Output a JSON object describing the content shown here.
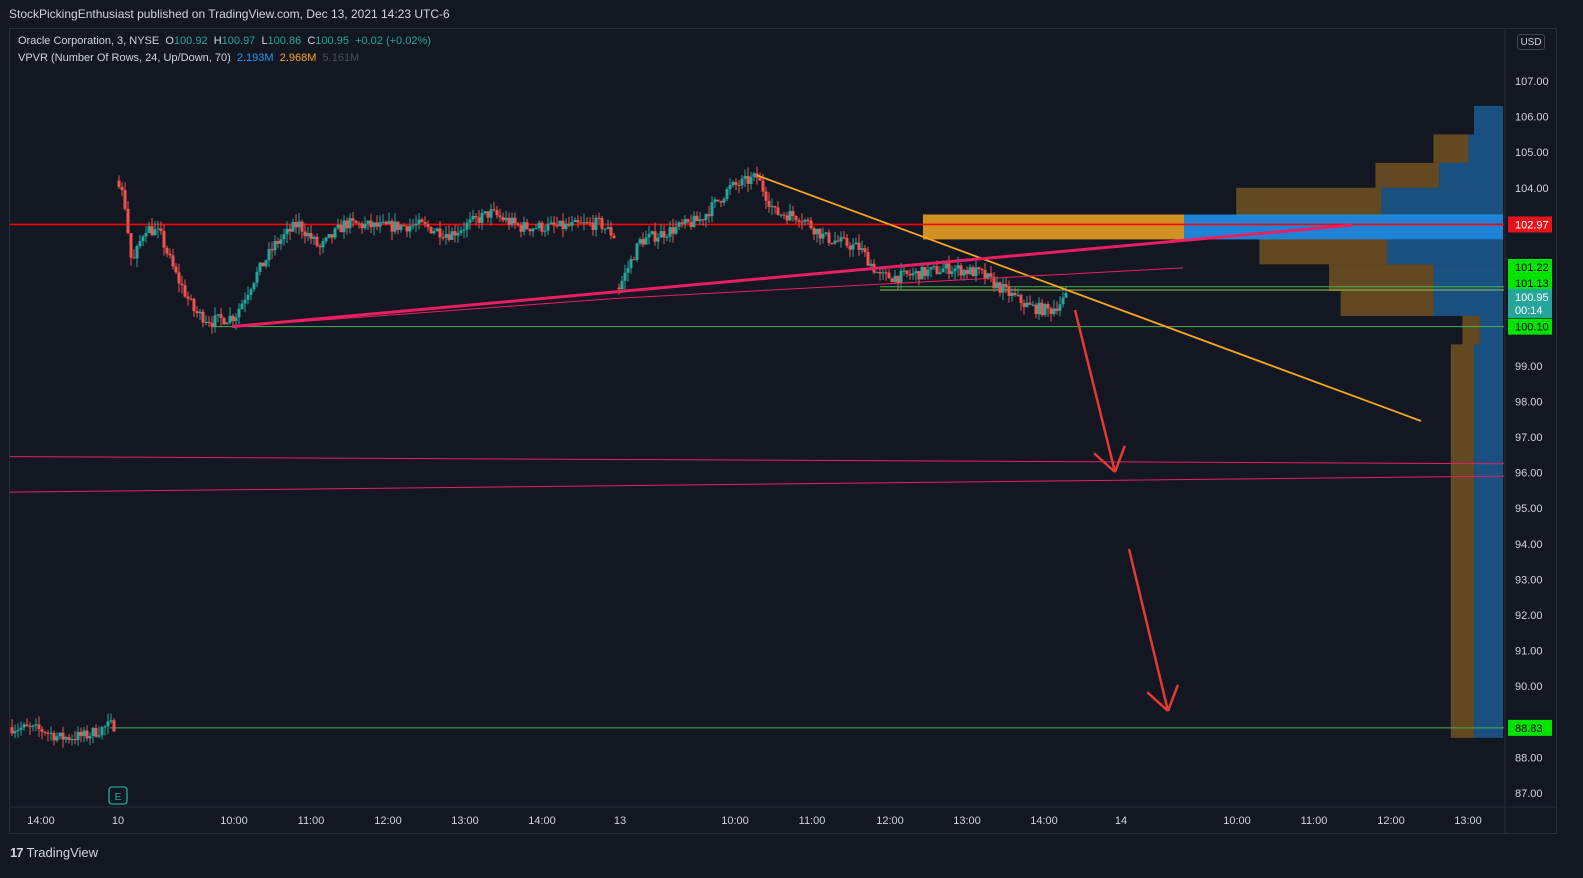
{
  "header": {
    "publish_line": "StockPickingEnthusiast published on TradingView.com, Dec 13, 2021 14:23 UTC-6"
  },
  "legend": {
    "symbol": "Oracle Corporation, 3, NYSE",
    "o_label": "O",
    "o_value": "100.92",
    "h_label": "H",
    "h_value": "100.97",
    "l_label": "L",
    "l_value": "100.86",
    "c_label": "C",
    "c_value": "100.95",
    "change": "+0.02 (+0.02%)",
    "indicator": "VPVR (Number Of Rows, 24, Up/Down, 70)",
    "ind_up": "2.193M",
    "ind_down": "2.968M",
    "ind_total": "5.161M"
  },
  "currency_badge": "USD",
  "earnings_marker": "E",
  "footer": {
    "brand": "TradingView",
    "brand_glyph": "17"
  },
  "colors": {
    "background": "#131722",
    "up_candle": "#26a69a",
    "down_candle": "#ef5350",
    "resistance_line": "#ff0000",
    "support_line": "#4caf50",
    "trendline_orange": "#f5a623",
    "trendline_pink": "#e91e63",
    "arrow": "#e53935",
    "vp_up": "#2196f3",
    "vp_down": "#f5a623"
  },
  "chart_data": {
    "type": "candlestick",
    "symbol": "ORCL",
    "interval": "3",
    "y_axis": {
      "ticks": [
        "107.00",
        "106.00",
        "105.00",
        "104.00",
        "102.97",
        "101.22",
        "101.13",
        "100.95",
        "100.10",
        "99.00",
        "98.00",
        "97.00",
        "96.00",
        "95.00",
        "94.00",
        "93.00",
        "92.00",
        "91.00",
        "90.00",
        "88.83",
        "88.00",
        "87.00"
      ],
      "range": [
        86.4,
        108.2
      ]
    },
    "x_axis": {
      "ticks": [
        "14:00",
        "10",
        "10:00",
        "11:00",
        "12:00",
        "13:00",
        "14:00",
        "13",
        "10:00",
        "11:00",
        "12:00",
        "13:00",
        "14:00",
        "14",
        "10:00",
        "11:00",
        "12:00",
        "13:00"
      ]
    },
    "price_labels": [
      {
        "value": "102.97",
        "kind": "resistance"
      },
      {
        "value": "101.22",
        "kind": "support"
      },
      {
        "value": "101.13",
        "kind": "support"
      },
      {
        "value": "100.95",
        "kind": "last"
      },
      {
        "value": "00:14",
        "kind": "countdown"
      },
      {
        "value": "100.10",
        "kind": "support"
      },
      {
        "value": "88.83",
        "kind": "support"
      }
    ],
    "horizontal_levels": [
      {
        "price": 102.97,
        "color": "#ff0000"
      },
      {
        "price": 101.22,
        "color": "#4caf50"
      },
      {
        "price": 100.1,
        "color": "#4caf50"
      },
      {
        "price": 88.83,
        "color": "#4caf50"
      }
    ],
    "trendlines": [
      {
        "name": "descending",
        "from": {
          "x": "Dec 13 10:18",
          "y": 104.35
        },
        "to": {
          "x": "Dec 14 12:40",
          "y": 97.45
        },
        "color": "#f5a623"
      },
      {
        "name": "rising",
        "from": {
          "x": "Dec 10 10:00",
          "y": 100.1
        },
        "to": {
          "x": "Dec 14 11:45",
          "y": 102.95
        },
        "color": "#e91e63"
      },
      {
        "name": "rising-thin",
        "from": {
          "x": "Dec 13 10:00",
          "y": 100.9
        },
        "to": {
          "x": "Dec 14 09:40",
          "y": 101.75
        },
        "color": "#e91e63"
      },
      {
        "name": "channel-upper",
        "from": {
          "x": "Dec 9 13:30",
          "y": 96.5
        },
        "to": {
          "x": "Dec 14 13:20",
          "y": 96.25
        },
        "color": "#e91e63"
      },
      {
        "name": "channel-lower",
        "from": {
          "x": "Dec 9 13:30",
          "y": 95.45
        },
        "to": {
          "x": "Dec 14 13:20",
          "y": 95.9
        },
        "color": "#e91e63"
      }
    ],
    "arrows": [
      {
        "from": {
          "x": "Dec 13 14:32",
          "y": 100.55
        },
        "to": {
          "x": "Dec 13 14:55",
          "y": 95.9
        }
      },
      {
        "from": {
          "x": "Dec 13 15:00",
          "y": 93.85
        },
        "to": {
          "x": "Dec 14 09:05",
          "y": 88.55
        }
      }
    ],
    "volume_profile": {
      "rows": [
        {
          "price_low": 105.5,
          "price_high": 106.3,
          "up": 0.05,
          "down": 0.0
        },
        {
          "price_low": 104.7,
          "price_high": 105.5,
          "up": 0.06,
          "down": 0.06
        },
        {
          "price_low": 104.0,
          "price_high": 104.7,
          "up": 0.11,
          "down": 0.11
        },
        {
          "price_low": 103.2,
          "price_high": 104.0,
          "up": 0.21,
          "down": 0.25
        },
        {
          "price_low": 102.55,
          "price_high": 103.25,
          "up": 0.55,
          "down": 0.45
        },
        {
          "price_low": 101.85,
          "price_high": 102.55,
          "up": 0.2,
          "down": 0.22
        },
        {
          "price_low": 101.1,
          "price_high": 101.85,
          "up": 0.12,
          "down": 0.18
        },
        {
          "price_low": 100.4,
          "price_high": 101.1,
          "up": 0.12,
          "down": 0.16
        },
        {
          "price_low": 99.6,
          "price_high": 100.4,
          "up": 0.04,
          "down": 0.03
        },
        {
          "price_low": 88.55,
          "price_high": 99.6,
          "up": 0.05,
          "down": 0.04
        }
      ]
    }
  }
}
